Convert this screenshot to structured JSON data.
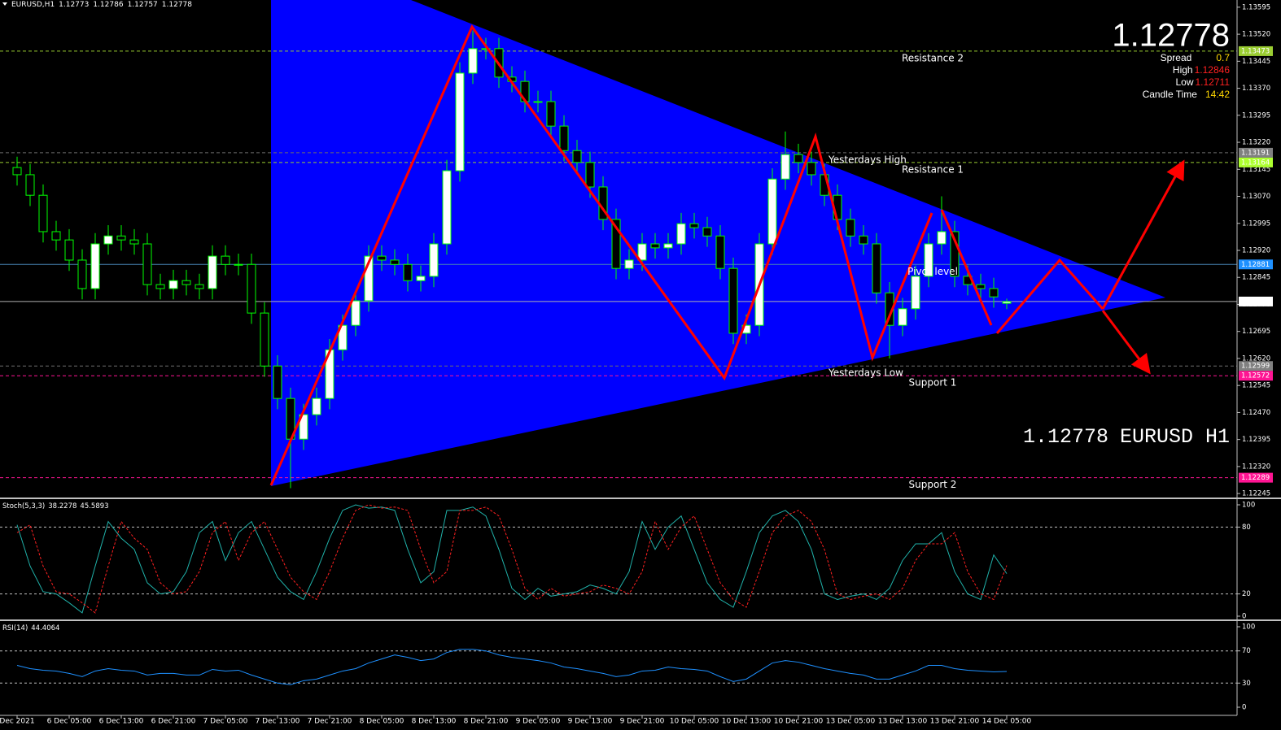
{
  "chart_data": [
    {
      "type": "candlestick",
      "title": "EURUSD,H1",
      "symbol_caption": "EURUSD H1",
      "categories": [
        "Dec 2021",
        null,
        null,
        null,
        "6 Dec 05:00",
        null,
        null,
        null,
        "6 Dec 13:00",
        null,
        null,
        null,
        "6 Dec 21:00",
        null,
        null,
        null,
        "7 Dec 05:00",
        null,
        null,
        null,
        "7 Dec 13:00",
        null,
        null,
        null,
        "7 Dec 21:00",
        null,
        null,
        null,
        "8 Dec 05:00",
        null,
        null,
        null,
        "8 Dec 13:00",
        null,
        null,
        null,
        "8 Dec 21:00",
        null,
        null,
        null,
        "9 Dec 05:00",
        null,
        null,
        null,
        "9 Dec 13:00",
        null,
        null,
        null,
        "9 Dec 21:00",
        null,
        null,
        null,
        "10 Dec 05:00",
        null,
        null,
        null,
        "10 Dec 13:00",
        null,
        null,
        null,
        "10 Dec 21:00",
        null,
        null,
        null,
        "13 Dec 05:00",
        null,
        null,
        null,
        "13 Dec 13:00",
        null,
        null,
        null,
        "13 Dec 21:00",
        null,
        null,
        null,
        "14 Dec 05:00"
      ],
      "open": [
        1.1315,
        1.1313,
        1.13073,
        1.12972,
        1.12949,
        1.12893,
        1.12814,
        1.12938,
        1.1296,
        1.12949,
        1.12938,
        1.12825,
        1.12814,
        1.12836,
        1.12825,
        1.12814,
        1.12904,
        1.12881,
        1.12881,
        1.12746,
        1.12599,
        1.12509,
        1.12396,
        1.12464,
        1.12509,
        1.12644,
        1.12712,
        1.1278,
        1.12904,
        1.12893,
        1.12881,
        1.12836,
        1.12848,
        1.12938,
        1.13141,
        1.13412,
        1.1348,
        1.1348,
        1.13401,
        1.13389,
        1.13333,
        1.13333,
        1.13265,
        1.13197,
        1.13164,
        1.13096,
        1.13006,
        1.1287,
        1.12893,
        1.12938,
        1.12927,
        1.12938,
        1.12994,
        1.12983,
        1.1296,
        1.1287,
        1.1269,
        1.12712,
        1.12938,
        1.13118,
        1.13186,
        1.13164,
        1.1313,
        1.13073,
        1.13006,
        1.1296,
        1.12938,
        1.12802,
        1.12712,
        1.12758,
        1.12848,
        1.12938,
        1.12972,
        1.12848,
        1.12825,
        1.12814,
        1.12773
      ],
      "high": [
        1.1318,
        1.1316,
        1.13103,
        1.13002,
        1.12979,
        1.12923,
        1.12968,
        1.1299,
        1.1299,
        1.12979,
        1.12968,
        1.12855,
        1.12866,
        1.12866,
        1.12855,
        1.12934,
        1.12934,
        1.12911,
        1.12911,
        1.12776,
        1.12629,
        1.12539,
        1.12494,
        1.12539,
        1.12674,
        1.12742,
        1.1281,
        1.12934,
        1.12934,
        1.12923,
        1.12911,
        1.12878,
        1.12968,
        1.13171,
        1.13442,
        1.1353,
        1.1351,
        1.1351,
        1.13431,
        1.13419,
        1.13363,
        1.13363,
        1.13295,
        1.13227,
        1.13194,
        1.13126,
        1.13036,
        1.12923,
        1.12968,
        1.12968,
        1.12968,
        1.13024,
        1.13024,
        1.13013,
        1.1299,
        1.129,
        1.12742,
        1.12968,
        1.13148,
        1.1325,
        1.13216,
        1.13194,
        1.1316,
        1.13103,
        1.13036,
        1.1299,
        1.12968,
        1.12832,
        1.12788,
        1.12878,
        1.12968,
        1.1307,
        1.13002,
        1.12878,
        1.12855,
        1.12844,
        1.12786
      ],
      "low": [
        1.131,
        1.13043,
        1.12942,
        1.12919,
        1.12863,
        1.12784,
        1.12784,
        1.12908,
        1.12919,
        1.12908,
        1.12795,
        1.12784,
        1.12784,
        1.12795,
        1.12784,
        1.12784,
        1.12851,
        1.12851,
        1.12716,
        1.12569,
        1.12479,
        1.1226,
        1.12366,
        1.12434,
        1.12479,
        1.12614,
        1.12682,
        1.1275,
        1.12863,
        1.12851,
        1.12806,
        1.12806,
        1.12818,
        1.12908,
        1.13111,
        1.13382,
        1.1345,
        1.13371,
        1.13359,
        1.13303,
        1.13303,
        1.13235,
        1.13167,
        1.13134,
        1.13066,
        1.12976,
        1.1284,
        1.1284,
        1.12863,
        1.12897,
        1.12897,
        1.12908,
        1.12953,
        1.1293,
        1.1284,
        1.1266,
        1.1266,
        1.12682,
        1.12908,
        1.13088,
        1.13134,
        1.131,
        1.13043,
        1.12976,
        1.1293,
        1.12908,
        1.12772,
        1.1262,
        1.12682,
        1.12728,
        1.12818,
        1.12908,
        1.12818,
        1.12795,
        1.12784,
        1.12761,
        1.12757
      ],
      "close": [
        1.1313,
        1.13073,
        1.12972,
        1.12949,
        1.12893,
        1.12814,
        1.12938,
        1.1296,
        1.12949,
        1.12938,
        1.12825,
        1.12814,
        1.12836,
        1.12825,
        1.12814,
        1.12904,
        1.12881,
        1.12881,
        1.12746,
        1.12599,
        1.12509,
        1.12396,
        1.12464,
        1.12509,
        1.12644,
        1.12712,
        1.1278,
        1.12904,
        1.12893,
        1.12881,
        1.12836,
        1.12848,
        1.12938,
        1.13141,
        1.13412,
        1.1348,
        1.1348,
        1.13401,
        1.13389,
        1.13333,
        1.13333,
        1.13265,
        1.13197,
        1.13164,
        1.13096,
        1.13006,
        1.1287,
        1.12893,
        1.12938,
        1.12927,
        1.12938,
        1.12994,
        1.12983,
        1.1296,
        1.1287,
        1.1269,
        1.12712,
        1.12938,
        1.13118,
        1.13186,
        1.13164,
        1.1313,
        1.13073,
        1.13006,
        1.1296,
        1.12938,
        1.12802,
        1.12712,
        1.12758,
        1.12848,
        1.12938,
        1.12972,
        1.12848,
        1.12825,
        1.12814,
        1.12791,
        1.12778
      ],
      "up_color": "#ffffff",
      "down_color": "#000000",
      "wick_color": "#00ff00",
      "ylim": [
        1.12234,
        1.13615
      ],
      "yticks": [
        1.13595,
        {
          "value": 1.1352,
          "label": "1.13520"
        },
        1.13445,
        {
          "value": 1.1337,
          "label": "1.13370"
        },
        1.13295,
        {
          "value": 1.1322,
          "label": "1.13220"
        },
        1.13145,
        {
          "value": 1.1307,
          "label": "1.13070"
        },
        1.12995,
        {
          "value": 1.1292,
          "label": "1.12920"
        },
        1.12845,
        {
          "value": 1.1277,
          "label": "1.12770"
        },
        1.12695,
        {
          "value": 1.1262,
          "label": "1.12620"
        },
        1.12545,
        {
          "value": 1.1247,
          "label": "1.12470"
        },
        1.12395,
        {
          "value": 1.1232,
          "label": "1.12320"
        },
        1.12245
      ],
      "levels": [
        {
          "name": "Resistance 2",
          "value": 1.13473,
          "color": "#9acd32",
          "box": "#9acd32",
          "dashed": true
        },
        {
          "name": "Yesterdays High",
          "value": 1.13191,
          "color": "#6e6e6e",
          "box": "#808080",
          "dashed": true
        },
        {
          "name": "Resistance 1",
          "value": 1.13164,
          "color": "#9acd32",
          "box": "#adff2f",
          "dashed": true
        },
        {
          "name": "Pivot level",
          "value": 1.12881,
          "color": "#4682b4",
          "box": "#1e90ff",
          "dashed": false
        },
        {
          "name": "Yesterdays Low",
          "value": 1.12599,
          "color": "#6e6e6e",
          "box": "#808080",
          "dashed": true
        },
        {
          "name": "Support 1",
          "value": 1.12572,
          "color": "#ff1493",
          "box": "#ff1493",
          "dashed": true
        },
        {
          "name": "Support 2",
          "value": 1.12289,
          "color": "#ff1493",
          "box": "#ff1493",
          "dashed": true
        }
      ],
      "info": [
        {
          "label": "Spread",
          "value": 0.7,
          "color": "#ffd700"
        },
        {
          "label": "High",
          "value": 1.12846,
          "color": "#ff2020"
        },
        {
          "label": "Low",
          "value": 1.12711,
          "color": "#ff2020"
        },
        {
          "label": "Candle Time",
          "value": "14:42",
          "color": "#ffd700"
        }
      ]
    },
    {
      "type": "line",
      "title": "Stoch(5,3,3)",
      "ylim": [
        0,
        100
      ],
      "yticks": [
        100,
        80,
        20,
        0
      ],
      "series": [
        {
          "name": "Main",
          "color": "#20b2aa",
          "dashed": false,
          "values": [
            82,
            45,
            22,
            20,
            12,
            3,
            45,
            85,
            70,
            60,
            30,
            20,
            22,
            40,
            75,
            85,
            50,
            75,
            85,
            60,
            35,
            22,
            15,
            40,
            70,
            95,
            100,
            97,
            98,
            95,
            60,
            30,
            40,
            95,
            95,
            98,
            90,
            60,
            25,
            15,
            25,
            18,
            20,
            22,
            28,
            25,
            20,
            40,
            85,
            60,
            80,
            90,
            60,
            30,
            15,
            8,
            40,
            75,
            90,
            95,
            85,
            60,
            20,
            15,
            18,
            20,
            15,
            25,
            50,
            65,
            65,
            75,
            40,
            20,
            15,
            55,
            38.2278
          ]
        },
        {
          "name": "Signal",
          "color": "#ff2020",
          "dashed": true,
          "values": [
            75,
            82,
            45,
            22,
            20,
            12,
            3,
            45,
            85,
            70,
            60,
            30,
            20,
            22,
            40,
            75,
            85,
            50,
            75,
            85,
            60,
            35,
            22,
            15,
            40,
            70,
            95,
            100,
            97,
            98,
            95,
            60,
            30,
            40,
            95,
            95,
            98,
            90,
            60,
            25,
            15,
            25,
            18,
            20,
            22,
            28,
            25,
            20,
            40,
            85,
            60,
            80,
            90,
            60,
            30,
            15,
            8,
            40,
            75,
            90,
            95,
            85,
            60,
            20,
            15,
            18,
            20,
            15,
            25,
            50,
            65,
            65,
            75,
            40,
            20,
            15,
            45.5893
          ]
        }
      ]
    },
    {
      "type": "line",
      "title": "RSI(14)",
      "ylim": [
        0,
        100
      ],
      "yticks": [
        100,
        70,
        30,
        0
      ],
      "series": [
        {
          "name": "RSI",
          "color": "#1e90ff",
          "dashed": false,
          "values": [
            52,
            48,
            46,
            45,
            42,
            38,
            45,
            48,
            46,
            45,
            40,
            42,
            42,
            40,
            40,
            47,
            45,
            46,
            40,
            35,
            30,
            28,
            33,
            35,
            40,
            45,
            48,
            55,
            60,
            65,
            62,
            58,
            60,
            68,
            72,
            72,
            70,
            65,
            62,
            60,
            58,
            55,
            50,
            48,
            45,
            42,
            38,
            40,
            45,
            46,
            50,
            48,
            47,
            45,
            38,
            32,
            35,
            45,
            55,
            58,
            56,
            52,
            48,
            45,
            42,
            40,
            35,
            35,
            40,
            45,
            52,
            52,
            48,
            46,
            45,
            44,
            44.4064
          ]
        }
      ]
    }
  ]
}
